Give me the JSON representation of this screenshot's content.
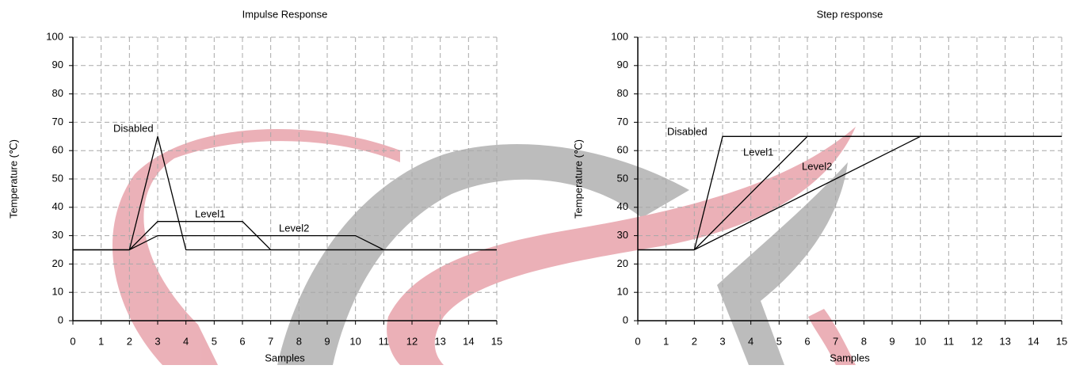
{
  "chart_data": [
    {
      "type": "line",
      "title": "Impulse Response",
      "x_label": "Samples",
      "y_label": "Temperature (℃)",
      "xlim": [
        0,
        15
      ],
      "ylim": [
        0,
        100
      ],
      "xticks": [
        0,
        1,
        2,
        3,
        4,
        5,
        6,
        7,
        8,
        9,
        10,
        11,
        12,
        13,
        14,
        15
      ],
      "yticks": [
        0,
        10,
        20,
        30,
        40,
        50,
        60,
        70,
        80,
        90,
        100
      ],
      "grid": true,
      "series": [
        {
          "name": "Disabled",
          "color": "#000000",
          "x": [
            0,
            2,
            3,
            4,
            15
          ],
          "values": [
            25,
            25,
            65,
            25,
            25
          ]
        },
        {
          "name": "Level1",
          "color": "#000000",
          "x": [
            0,
            2,
            3,
            6,
            7,
            15
          ],
          "values": [
            25,
            25,
            35,
            35,
            25,
            25
          ]
        },
        {
          "name": "Level2",
          "color": "#000000",
          "x": [
            0,
            2,
            3,
            10,
            11,
            15
          ],
          "values": [
            25,
            25,
            30,
            30,
            25,
            25
          ]
        }
      ]
    },
    {
      "type": "line",
      "title": "Step response",
      "x_label": "Samples",
      "y_label": "Temperature (℃)",
      "xlim": [
        0,
        15
      ],
      "ylim": [
        0,
        100
      ],
      "xticks": [
        0,
        1,
        2,
        3,
        4,
        5,
        6,
        7,
        8,
        9,
        10,
        11,
        12,
        13,
        14,
        15
      ],
      "yticks": [
        0,
        10,
        20,
        30,
        40,
        50,
        60,
        70,
        80,
        90,
        100
      ],
      "grid": true,
      "series": [
        {
          "name": "Disabled",
          "color": "#000000",
          "x": [
            0,
            2,
            3,
            15
          ],
          "values": [
            25,
            25,
            65,
            65
          ]
        },
        {
          "name": "Level1",
          "color": "#000000",
          "x": [
            0,
            2,
            6,
            15
          ],
          "values": [
            25,
            25,
            65,
            65
          ]
        },
        {
          "name": "Level2",
          "color": "#000000",
          "x": [
            0,
            2,
            10,
            15
          ],
          "values": [
            25,
            25,
            65,
            65
          ]
        }
      ]
    }
  ]
}
